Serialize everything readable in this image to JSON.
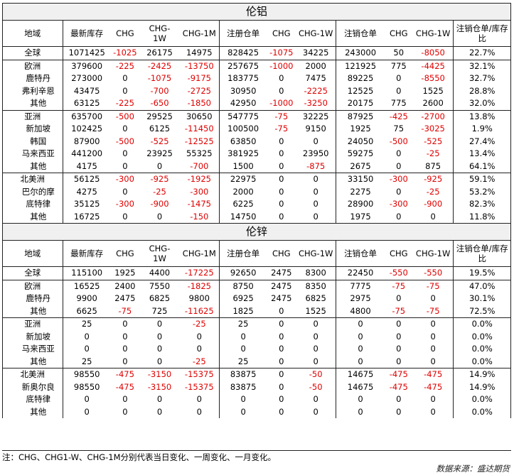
{
  "tables": [
    {
      "title": "伦铝",
      "headers": [
        "地域",
        "最新库存",
        "CHG",
        "CHG-1W",
        "CHG-1M",
        "注册仓单",
        "CHG",
        "CHG-1W",
        "注销仓单",
        "CHG",
        "CHG-1W",
        "注销仓单/库存比"
      ],
      "rows": [
        {
          "cells": [
            "全球",
            "1071425",
            "-1025",
            "26175",
            "14975",
            "828425",
            "-1075",
            "34225",
            "243000",
            "50",
            "-8050",
            "22.7%"
          ],
          "sub": false,
          "group_start": true
        },
        {
          "cells": [
            "欧洲",
            "379600",
            "-225",
            "-2425",
            "-13750",
            "257675",
            "-1000",
            "2000",
            "121925",
            "775",
            "-4425",
            "32.1%"
          ],
          "sub": false,
          "group_start": true
        },
        {
          "cells": [
            "鹿特丹",
            "273000",
            "0",
            "-1075",
            "-9175",
            "183775",
            "0",
            "7475",
            "89225",
            "0",
            "-8550",
            "32.7%"
          ],
          "sub": true,
          "group_start": false
        },
        {
          "cells": [
            "弗利辛恩",
            "43475",
            "0",
            "-700",
            "-2725",
            "30950",
            "0",
            "-2225",
            "12525",
            "0",
            "1525",
            "28.8%"
          ],
          "sub": true,
          "group_start": false
        },
        {
          "cells": [
            "其他",
            "63125",
            "-225",
            "-650",
            "-1850",
            "42950",
            "-1000",
            "-3250",
            "20175",
            "775",
            "2600",
            "32.0%"
          ],
          "sub": true,
          "group_start": false
        },
        {
          "cells": [
            "亚洲",
            "635700",
            "-500",
            "29525",
            "30650",
            "547775",
            "-75",
            "32225",
            "87925",
            "-425",
            "-2700",
            "13.8%"
          ],
          "sub": false,
          "group_start": true
        },
        {
          "cells": [
            "新加坡",
            "102425",
            "0",
            "6125",
            "-11450",
            "100500",
            "-75",
            "9150",
            "1925",
            "75",
            "-3025",
            "1.9%"
          ],
          "sub": true,
          "group_start": false
        },
        {
          "cells": [
            "韩国",
            "87900",
            "-500",
            "-525",
            "-12525",
            "63850",
            "0",
            "0",
            "24050",
            "-500",
            "-525",
            "27.4%"
          ],
          "sub": true,
          "group_start": false
        },
        {
          "cells": [
            "马来西亚",
            "441200",
            "0",
            "23925",
            "55325",
            "381925",
            "0",
            "23950",
            "59275",
            "0",
            "-25",
            "13.4%"
          ],
          "sub": true,
          "group_start": false
        },
        {
          "cells": [
            "其他",
            "4175",
            "0",
            "0",
            "-700",
            "1500",
            "0",
            "-875",
            "2675",
            "0",
            "875",
            "64.1%"
          ],
          "sub": true,
          "group_start": false
        },
        {
          "cells": [
            "北美洲",
            "56125",
            "-300",
            "-925",
            "-1925",
            "22975",
            "0",
            "0",
            "33150",
            "-300",
            "-925",
            "59.1%"
          ],
          "sub": false,
          "group_start": true
        },
        {
          "cells": [
            "巴尔的摩",
            "4275",
            "0",
            "-25",
            "-300",
            "2000",
            "0",
            "0",
            "2275",
            "0",
            "-25",
            "53.2%"
          ],
          "sub": true,
          "group_start": false
        },
        {
          "cells": [
            "底特律",
            "35125",
            "-300",
            "-900",
            "-1475",
            "6225",
            "0",
            "0",
            "28900",
            "-300",
            "-900",
            "82.3%"
          ],
          "sub": true,
          "group_start": false
        },
        {
          "cells": [
            "其他",
            "16725",
            "0",
            "0",
            "-150",
            "14750",
            "0",
            "0",
            "1975",
            "0",
            "0",
            "11.8%"
          ],
          "sub": true,
          "group_start": false
        }
      ]
    },
    {
      "title": "伦锌",
      "headers": [
        "地域",
        "最新库存",
        "CHG",
        "CHG-1W",
        "CHG-1M",
        "注册仓单",
        "CHG",
        "CHG-1W",
        "注销仓单",
        "CHG",
        "CHG-1W",
        "注销仓单/库存比"
      ],
      "rows": [
        {
          "cells": [
            "全球",
            "115100",
            "1925",
            "4400",
            "-17225",
            "92650",
            "2475",
            "8300",
            "22450",
            "-550",
            "-550",
            "19.5%"
          ],
          "sub": false,
          "group_start": true
        },
        {
          "cells": [
            "欧洲",
            "16525",
            "2400",
            "7550",
            "-1825",
            "8750",
            "2475",
            "8350",
            "7775",
            "-75",
            "-75",
            "47.0%"
          ],
          "sub": false,
          "group_start": true
        },
        {
          "cells": [
            "鹿特丹",
            "9900",
            "2475",
            "6825",
            "9800",
            "6925",
            "2475",
            "6825",
            "2975",
            "0",
            "0",
            "30.1%"
          ],
          "sub": true,
          "group_start": false
        },
        {
          "cells": [
            "其他",
            "6625",
            "-75",
            "725",
            "-11625",
            "1825",
            "0",
            "1525",
            "4800",
            "-75",
            "-75",
            "72.5%"
          ],
          "sub": true,
          "group_start": false
        },
        {
          "cells": [
            "亚洲",
            "25",
            "0",
            "0",
            "-25",
            "25",
            "0",
            "0",
            "0",
            "0",
            "0",
            "0.0%"
          ],
          "sub": false,
          "group_start": true
        },
        {
          "cells": [
            "新加坡",
            "0",
            "0",
            "0",
            "0",
            "0",
            "0",
            "0",
            "0",
            "0",
            "0",
            "0.0%"
          ],
          "sub": true,
          "group_start": false
        },
        {
          "cells": [
            "马来西亚",
            "0",
            "0",
            "0",
            "0",
            "0",
            "0",
            "0",
            "0",
            "0",
            "0",
            "0.0%"
          ],
          "sub": true,
          "group_start": false
        },
        {
          "cells": [
            "其他",
            "25",
            "0",
            "0",
            "-25",
            "25",
            "0",
            "0",
            "0",
            "0",
            "0",
            "0.0%"
          ],
          "sub": true,
          "group_start": false
        },
        {
          "cells": [
            "北美洲",
            "98550",
            "-475",
            "-3150",
            "-15375",
            "83875",
            "0",
            "-50",
            "14675",
            "-475",
            "-475",
            "14.9%"
          ],
          "sub": false,
          "group_start": true
        },
        {
          "cells": [
            "新奥尔良",
            "98550",
            "-475",
            "-3150",
            "-15375",
            "83875",
            "0",
            "-50",
            "14675",
            "-475",
            "-475",
            "14.9%"
          ],
          "sub": true,
          "group_start": false
        },
        {
          "cells": [
            "底特律",
            "0",
            "0",
            "0",
            "0",
            "0",
            "0",
            "0",
            "0",
            "0",
            "0",
            "0.0%"
          ],
          "sub": true,
          "group_start": false
        },
        {
          "cells": [
            "其他",
            "0",
            "0",
            "0",
            "0",
            "0",
            "0",
            "0",
            "0",
            "0",
            "0",
            "0.0%"
          ],
          "sub": true,
          "group_start": false
        }
      ]
    }
  ],
  "footer": {
    "note": "注：CHG、CHG1-W、CHG-1M分别代表当日变化、一周变化、一月变化。",
    "source": "数据来源：盛达期货"
  },
  "colors": {
    "negative": "#e00000",
    "border": "#222222",
    "title_bg": "#f0f0f0"
  }
}
